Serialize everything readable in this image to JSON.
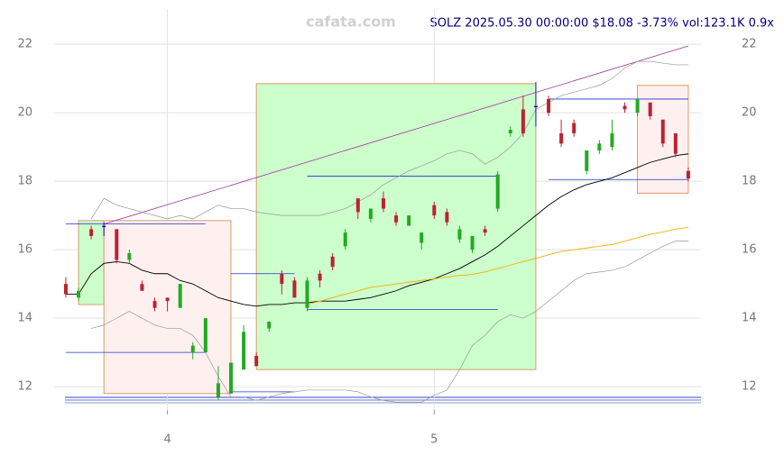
{
  "chart_data": {
    "type": "candlestick",
    "watermark": "cafata.com",
    "title": "SOLZ 2025.05.30 00:00:00 $18.08 -3.73% vol:123.1K 0.9x",
    "xlim": [
      -0.92,
      50.0
    ],
    "xticks": [
      {
        "value": 8,
        "label": "4"
      },
      {
        "value": 29,
        "label": "5"
      }
    ],
    "ylim": [
      11.32,
      23.03
    ],
    "yticks": [
      12,
      14,
      16,
      18,
      20,
      22
    ],
    "grid": true,
    "up_color": "#22aa22",
    "down_color": "#bb2233",
    "flat_color": "#1111cc",
    "open": [
      15.0,
      14.6,
      16.6,
      16.7,
      16.6,
      15.7,
      15.0,
      14.5,
      14.6,
      14.3,
      13.0,
      13.0,
      11.7,
      11.8,
      12.5,
      12.9,
      13.7,
      15.3,
      15.1,
      14.3,
      15.3,
      15.8,
      16.1,
      17.5,
      16.9,
      17.5,
      17.0,
      16.7,
      16.2,
      17.3,
      17.1,
      16.3,
      16.0,
      16.6,
      17.2,
      19.4,
      20.1,
      20.2,
      20.4,
      19.4,
      19.7,
      18.3,
      18.9,
      19.0,
      20.2,
      20.0,
      20.3,
      19.8,
      19.4,
      18.3
    ],
    "high": [
      15.2,
      14.9,
      16.7,
      16.8,
      16.6,
      16.0,
      15.1,
      14.6,
      14.6,
      15.0,
      13.3,
      14.0,
      12.6,
      12.7,
      13.8,
      13.0,
      13.9,
      15.4,
      15.2,
      15.2,
      15.4,
      15.9,
      16.6,
      17.5,
      17.2,
      17.7,
      17.1,
      17.0,
      16.5,
      17.4,
      17.2,
      16.7,
      16.4,
      16.7,
      18.3,
      19.6,
      20.5,
      20.9,
      20.5,
      19.8,
      19.8,
      18.9,
      19.2,
      19.8,
      20.3,
      20.4,
      20.3,
      19.8,
      19.4,
      18.4
    ],
    "low": [
      14.6,
      14.5,
      16.3,
      16.4,
      15.6,
      15.6,
      14.8,
      14.2,
      14.2,
      14.3,
      12.8,
      13.0,
      11.6,
      11.8,
      12.5,
      12.6,
      13.6,
      14.7,
      14.6,
      14.2,
      14.9,
      15.4,
      16.0,
      16.9,
      16.8,
      17.1,
      16.7,
      16.7,
      16.0,
      16.9,
      16.7,
      16.2,
      15.9,
      16.4,
      17.1,
      19.3,
      19.3,
      19.6,
      19.9,
      19.0,
      19.3,
      18.2,
      18.8,
      18.9,
      20.0,
      19.9,
      19.8,
      19.0,
      18.7,
      18.0
    ],
    "close": [
      14.7,
      14.8,
      16.4,
      16.7,
      15.7,
      15.9,
      14.8,
      14.3,
      14.5,
      15.0,
      13.2,
      14.0,
      12.1,
      12.7,
      13.6,
      12.6,
      13.9,
      15.0,
      14.6,
      15.1,
      15.1,
      15.5,
      16.5,
      17.1,
      17.2,
      17.2,
      16.8,
      17.0,
      16.5,
      17.0,
      16.8,
      16.6,
      16.4,
      16.5,
      18.2,
      19.5,
      19.4,
      20.2,
      20.0,
      19.1,
      19.4,
      18.9,
      19.1,
      19.4,
      20.1,
      20.4,
      19.9,
      19.1,
      18.8,
      18.08
    ],
    "series": [
      {
        "color": "#000000",
        "values": [
          14.7,
          14.7,
          15.3,
          15.6,
          15.65,
          15.6,
          15.4,
          15.3,
          15.3,
          15.1,
          15.0,
          14.8,
          14.6,
          14.5,
          14.4,
          14.35,
          14.4,
          14.4,
          14.45,
          14.45,
          14.5,
          14.5,
          14.5,
          14.55,
          14.6,
          14.7,
          14.8,
          14.95,
          15.05,
          15.15,
          15.3,
          15.45,
          15.65,
          15.85,
          16.1,
          16.4,
          16.7,
          17.0,
          17.3,
          17.55,
          17.75,
          17.9,
          18.0,
          18.1,
          18.25,
          18.4,
          18.55,
          18.65,
          18.75,
          18.8
        ]
      },
      {
        "color": "#f0b000",
        "values": [
          null,
          null,
          null,
          null,
          null,
          null,
          null,
          null,
          null,
          null,
          null,
          null,
          null,
          null,
          null,
          null,
          null,
          null,
          null,
          14.4,
          14.5,
          14.6,
          14.7,
          14.8,
          14.9,
          14.95,
          15.0,
          15.05,
          15.1,
          15.15,
          15.2,
          15.25,
          15.28,
          15.35,
          15.45,
          15.55,
          15.65,
          15.75,
          15.85,
          15.95,
          16.0,
          16.05,
          16.1,
          16.15,
          16.25,
          16.35,
          16.45,
          16.52,
          16.6,
          16.65
        ]
      },
      {
        "color": "#999999",
        "values": [
          null,
          null,
          16.9,
          17.5,
          17.3,
          17.2,
          17.1,
          17.0,
          16.9,
          17.0,
          16.9,
          17.1,
          17.3,
          17.2,
          17.2,
          17.1,
          17.05,
          17.0,
          17.0,
          17.0,
          17.0,
          17.1,
          17.2,
          17.4,
          17.6,
          17.9,
          18.1,
          18.3,
          18.45,
          18.6,
          18.8,
          18.9,
          18.8,
          18.5,
          18.7,
          19.0,
          19.4,
          20.1,
          20.3,
          20.5,
          20.6,
          20.7,
          20.8,
          21.0,
          21.3,
          21.5,
          21.5,
          21.45,
          21.4,
          21.4
        ]
      },
      {
        "color": "#999999",
        "values": [
          null,
          null,
          13.7,
          13.8,
          14.0,
          14.2,
          14.0,
          13.8,
          13.7,
          13.7,
          13.5,
          13.0,
          12.3,
          11.7,
          11.7,
          11.6,
          11.7,
          11.8,
          11.85,
          11.9,
          11.9,
          11.9,
          11.9,
          11.85,
          11.7,
          11.6,
          11.55,
          11.55,
          11.55,
          11.75,
          11.9,
          12.5,
          13.2,
          13.5,
          13.9,
          14.1,
          14.0,
          14.2,
          14.5,
          14.8,
          15.1,
          15.3,
          15.35,
          15.4,
          15.5,
          15.7,
          15.9,
          16.1,
          16.25,
          16.25
        ]
      }
    ],
    "boxes": [
      {
        "x": [
          1,
          3
        ],
        "y": [
          14.4,
          16.85
        ],
        "color": "#ccffcc"
      },
      {
        "x": [
          3,
          13
        ],
        "y": [
          11.8,
          16.85
        ],
        "color": "#fff0f0"
      },
      {
        "x": [
          15,
          37
        ],
        "y": [
          12.5,
          20.85
        ],
        "color": "#ccffcc"
      },
      {
        "x": [
          45,
          49
        ],
        "y": [
          17.65,
          20.8
        ],
        "color": "#fff0f0"
      }
    ],
    "levels": [
      {
        "x": [
          0,
          11
        ],
        "y": 16.75
      },
      {
        "x": [
          0,
          11
        ],
        "y": 13.0
      },
      {
        "x": [
          13,
          18
        ],
        "y": 15.3
      },
      {
        "x": [
          13,
          18
        ],
        "y": 11.85
      },
      {
        "x": [
          19,
          34
        ],
        "y": 18.15
      },
      {
        "x": [
          19,
          34
        ],
        "y": 14.25
      },
      {
        "x": [
          38,
          49
        ],
        "y": 20.4
      },
      {
        "x": [
          38,
          49
        ],
        "y": 18.05
      }
    ],
    "trendline": {
      "x": [
        3,
        49
      ],
      "y": [
        16.75,
        21.95
      ],
      "color": "#993399"
    }
  }
}
